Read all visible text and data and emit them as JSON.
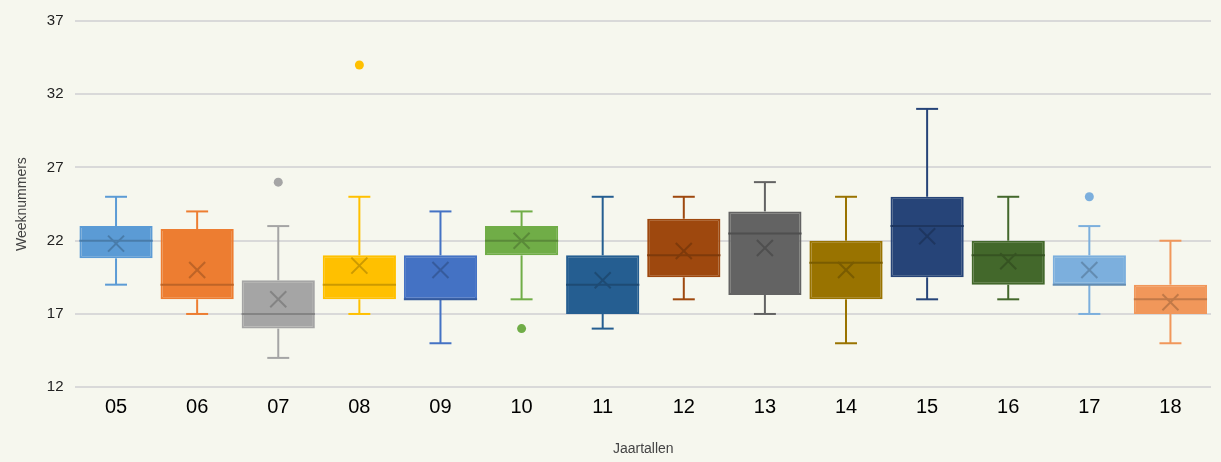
{
  "chart_data": {
    "type": "box",
    "xlabel": "Jaartallen",
    "ylabel": "Weeknummers",
    "categories": [
      "05",
      "06",
      "07",
      "08",
      "09",
      "10",
      "11",
      "12",
      "13",
      "14",
      "15",
      "16",
      "17",
      "18"
    ],
    "colors": [
      "#5b9bd5",
      "#ed7d31",
      "#a5a5a5",
      "#ffc000",
      "#4472c4",
      "#70ad47",
      "#255e91",
      "#9e480e",
      "#636363",
      "#997300",
      "#264478",
      "#43682b",
      "#7cafdd",
      "#f1975a"
    ],
    "boxes": [
      {
        "low": 19,
        "q1": 20.8,
        "median": 22,
        "q3": 23,
        "high": 25,
        "mean": 21.8
      },
      {
        "low": 17,
        "q1": 18,
        "median": 19,
        "q3": 22.8,
        "high": 24,
        "mean": 20
      },
      {
        "low": 14,
        "q1": 16,
        "median": 17,
        "q3": 19.3,
        "high": 23,
        "mean": 18,
        "outliers": [
          26
        ]
      },
      {
        "low": 17,
        "q1": 18,
        "median": 19,
        "q3": 21,
        "high": 25,
        "mean": 20.3,
        "outliers": [
          34
        ]
      },
      {
        "low": 15,
        "q1": 18,
        "median": 18,
        "q3": 21,
        "high": 24,
        "mean": 20
      },
      {
        "low": 18,
        "q1": 21,
        "median": 22,
        "q3": 23,
        "high": 24,
        "mean": 22,
        "outliers": [
          16
        ]
      },
      {
        "low": 16,
        "q1": 17,
        "median": 19,
        "q3": 21,
        "high": 25,
        "mean": 19.3
      },
      {
        "low": 18,
        "q1": 19.5,
        "median": 21,
        "q3": 23.5,
        "high": 25,
        "mean": 21.3
      },
      {
        "low": 17,
        "q1": 18.3,
        "median": 22.5,
        "q3": 24,
        "high": 26,
        "mean": 21.5
      },
      {
        "low": 15,
        "q1": 18,
        "median": 20.5,
        "q3": 22,
        "high": 25,
        "mean": 20
      },
      {
        "low": 18,
        "q1": 19.5,
        "median": 23,
        "q3": 25,
        "high": 31,
        "mean": 22.3
      },
      {
        "low": 18,
        "q1": 19,
        "median": 21,
        "q3": 22,
        "high": 25,
        "mean": 20.6
      },
      {
        "low": 17,
        "q1": 19,
        "median": 19,
        "q3": 21,
        "high": 23,
        "mean": 20,
        "outliers": [
          25
        ]
      },
      {
        "low": 15,
        "q1": 17,
        "median": 18,
        "q3": 19,
        "high": 22,
        "mean": 17.8
      }
    ],
    "ylim": [
      12,
      37
    ],
    "yticks": [
      12,
      17,
      22,
      27,
      32,
      37
    ],
    "grid": "y",
    "legend": false
  }
}
